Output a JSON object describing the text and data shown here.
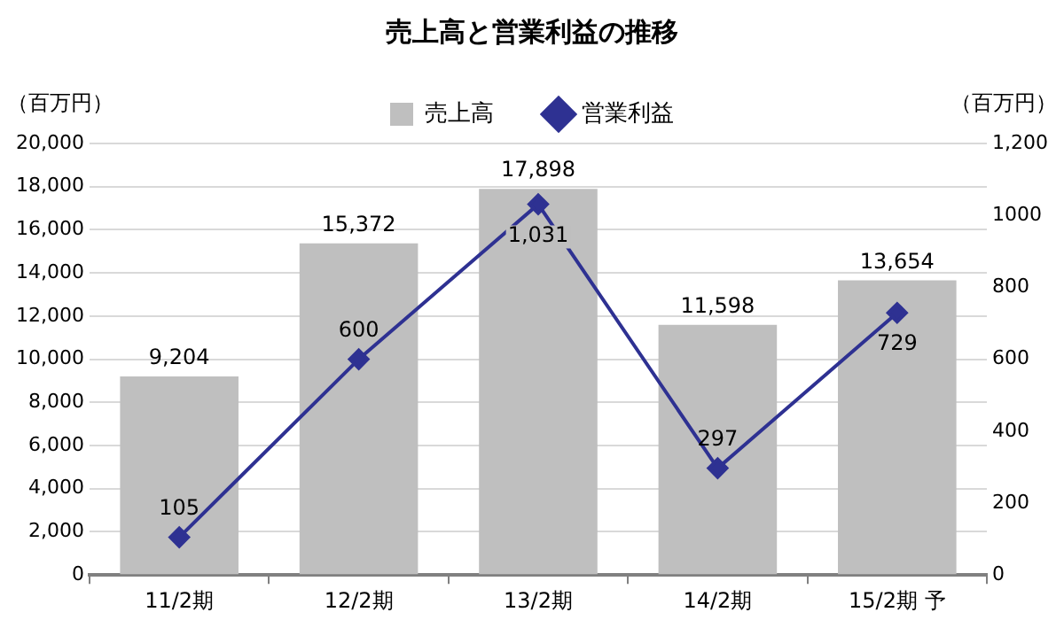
{
  "chart_data": {
    "type": "bar",
    "title": "売上高と営業利益の推移",
    "ylabel": "（百万円）",
    "y2label": "（百万円）",
    "categories": [
      "11/2期",
      "12/2期",
      "13/2期",
      "14/2期",
      "15/2期 予"
    ],
    "series": [
      {
        "name": "売上高",
        "color": "#bfbfbf",
        "values": [
          9204,
          15372,
          17898,
          11598,
          13654
        ],
        "value_labels": [
          "9,204",
          "15,372",
          "17,898",
          "11,598",
          "13,654"
        ]
      },
      {
        "name": "営業利益",
        "type": "line",
        "axis": "y2",
        "color": "#2e3192",
        "marker": "diamond",
        "values": [
          105,
          600,
          1031,
          297,
          729
        ],
        "value_labels": [
          "105",
          "600",
          "1,031",
          "297",
          "729"
        ]
      }
    ],
    "ylim": [
      0,
      20000
    ],
    "yticks": [
      0,
      {
        "value": 2000,
        "label": "2,000"
      },
      {
        "value": 4000,
        "label": "4,000"
      },
      {
        "value": 6000,
        "label": "6,000"
      },
      {
        "value": 8000,
        "label": "8,000"
      },
      {
        "value": 10000,
        "label": "10,000"
      },
      {
        "value": 12000,
        "label": "12,000"
      },
      {
        "value": 14000,
        "label": "14,000"
      },
      {
        "value": 16000,
        "label": "16,000"
      },
      {
        "value": 18000,
        "label": "18,000"
      },
      {
        "value": 20000,
        "label": "20,000"
      }
    ],
    "y2lim": [
      0,
      1200
    ],
    "y2ticks": [
      0,
      200,
      400,
      600,
      800,
      1000,
      {
        "value": 1200,
        "label": "1,200"
      }
    ],
    "grid": "y",
    "legend": "top"
  }
}
